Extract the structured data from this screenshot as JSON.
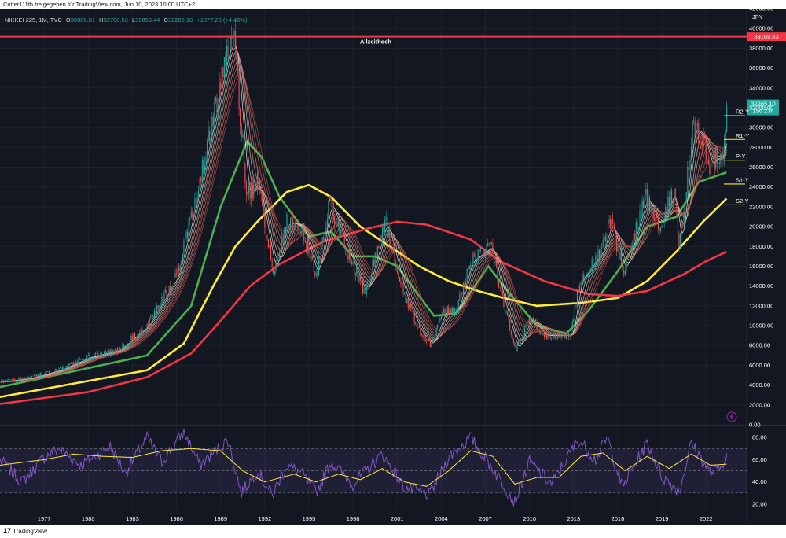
{
  "header": {
    "published_by": "Cutter111th freigegeben für TradingView.com, Jun 10, 2023 10:00 UTC+2"
  },
  "legend": {
    "symbol": "NIKKEI 225, 1M, TVC",
    "open_label": "O",
    "open": "30886.01",
    "high_label": "H",
    "high": "32708.53",
    "low_label": "L",
    "low": "30853.44",
    "close_label": "C",
    "close": "32265.10",
    "change": "+1377.29 (+4.46%)"
  },
  "footer": {
    "logo": "17",
    "brand": "TradingView"
  },
  "colors": {
    "background": "#131722",
    "rsi_background": "#1a1d2b",
    "up_candle": "#26a69a",
    "down_candle": "#ef5350",
    "ath_line": "#f23645",
    "green_ma": "#4caf50",
    "yellow_ma": "#ffeb3b",
    "red_ma": "#f23645",
    "rsi_line": "#7e57c2",
    "rsi_ma": "#ffeb3b",
    "pivot": "#ffeb3b",
    "price_tag": "#26a69a"
  },
  "chart_data": {
    "type": "candlestick",
    "symbol": "NIKKEI 225",
    "interval": "1M",
    "currency": "JPY",
    "y_range": [
      0,
      42000
    ],
    "y_ticks": [
      0,
      2000,
      4000,
      6000,
      8000,
      10000,
      12000,
      14000,
      16000,
      18000,
      20000,
      22000,
      24000,
      26000,
      28000,
      30000,
      32000,
      34000,
      36000,
      38000,
      40000,
      42000
    ],
    "y_tick_labels": [
      "0.00",
      "2000.00",
      "4000.00",
      "6000.00",
      "8000.00",
      "10000.00",
      "12000.00",
      "14000.00",
      "16000.00",
      "18000.00",
      "20000.00",
      "22000.00",
      "24000.00",
      "26000.00",
      "28000.00",
      "30000.00",
      "32000.00",
      "34000.00",
      "36000.00",
      "38000.00",
      "40000.00",
      "42000.00"
    ],
    "x_range": [
      1974.0,
      2024.5
    ],
    "x_ticks": [
      1977,
      1980,
      1983,
      1986,
      1989,
      1992,
      1995,
      1998,
      2001,
      2004,
      2007,
      2010,
      2013,
      2016,
      2019,
      2022
    ],
    "x_tick_labels": [
      "1977",
      "1980",
      "1983",
      "1986",
      "1989",
      "1992",
      "1995",
      "1998",
      "2001",
      "2004",
      "2007",
      "2010",
      "2013",
      "2016",
      "2019",
      "2022"
    ],
    "price_path": [
      [
        1974.0,
        4300
      ],
      [
        1976.0,
        4700
      ],
      [
        1978.0,
        5500
      ],
      [
        1980.0,
        6800
      ],
      [
        1982.0,
        7500
      ],
      [
        1984.0,
        10000
      ],
      [
        1986.0,
        15000
      ],
      [
        1987.5,
        24000
      ],
      [
        1989.5,
        38000
      ],
      [
        1989.95,
        38500
      ],
      [
        1990.4,
        30000
      ],
      [
        1990.8,
        23000
      ],
      [
        1991.5,
        24500
      ],
      [
        1992.6,
        15500
      ],
      [
        1993.5,
        20500
      ],
      [
        1994.5,
        20000
      ],
      [
        1995.5,
        15000
      ],
      [
        1996.4,
        22500
      ],
      [
        1997.5,
        18000
      ],
      [
        1998.8,
        13200
      ],
      [
        2000.2,
        20500
      ],
      [
        2001.5,
        13000
      ],
      [
        2002.5,
        9500
      ],
      [
        2003.3,
        8000
      ],
      [
        2004.2,
        11500
      ],
      [
        2005.0,
        11500
      ],
      [
        2006.0,
        16500
      ],
      [
        2007.4,
        18000
      ],
      [
        2008.0,
        13500
      ],
      [
        2009.1,
        7500
      ],
      [
        2010.0,
        10800
      ],
      [
        2011.0,
        9000
      ],
      [
        2012.8,
        9000
      ],
      [
        2013.4,
        14500
      ],
      [
        2014.9,
        17500
      ],
      [
        2015.5,
        20500
      ],
      [
        2016.4,
        15500
      ],
      [
        2017.9,
        23000
      ],
      [
        2018.8,
        20000
      ],
      [
        2019.8,
        23500
      ],
      [
        2020.2,
        18000
      ],
      [
        2021.1,
        30000
      ],
      [
        2021.8,
        29000
      ],
      [
        2022.3,
        26000
      ],
      [
        2022.8,
        27500
      ],
      [
        2023.1,
        26500
      ],
      [
        2023.45,
        32265
      ]
    ],
    "close_price": 32265.1,
    "close_label": "32265.10",
    "countdown_label": "19d 23h",
    "all_time_high": {
      "value": 39169.43,
      "label": "39169.43",
      "annotation": "Allzeithoch"
    },
    "pivots": [
      {
        "name": "R2-Y",
        "value": 31200
      },
      {
        "name": "R1-Y",
        "value": 28800
      },
      {
        "name": "P-Y",
        "value": 26700
      },
      {
        "name": "S1-Y",
        "value": 24300
      },
      {
        "name": "S2-Y",
        "value": 22200
      }
    ],
    "moving_averages": [
      {
        "color": "green",
        "points": [
          [
            1974.0,
            3800
          ],
          [
            1984.0,
            7000
          ],
          [
            1987.0,
            12000
          ],
          [
            1989.0,
            22000
          ],
          [
            1990.8,
            28600
          ],
          [
            1991.8,
            27000
          ],
          [
            1993.0,
            23000
          ],
          [
            1995.0,
            19000
          ],
          [
            1996.5,
            19500
          ],
          [
            1998.0,
            17000
          ],
          [
            1999.5,
            17000
          ],
          [
            2001.0,
            16000
          ],
          [
            2003.5,
            11000
          ],
          [
            2005.0,
            11200
          ],
          [
            2007.2,
            16000
          ],
          [
            2008.5,
            13500
          ],
          [
            2010.5,
            10000
          ],
          [
            2012.5,
            9200
          ],
          [
            2014.0,
            11500
          ],
          [
            2016.0,
            15500
          ],
          [
            2018.0,
            20000
          ],
          [
            2020.0,
            21000
          ],
          [
            2021.5,
            24500
          ],
          [
            2023.45,
            25500
          ]
        ]
      },
      {
        "color": "yellow",
        "points": [
          [
            1974.0,
            2800
          ],
          [
            1984.0,
            5500
          ],
          [
            1986.5,
            8200
          ],
          [
            1988.5,
            14000
          ],
          [
            1990.0,
            18000
          ],
          [
            1991.5,
            20500
          ],
          [
            1993.5,
            23500
          ],
          [
            1995.0,
            24200
          ],
          [
            1996.5,
            23000
          ],
          [
            1998.5,
            20000
          ],
          [
            2000.5,
            18000
          ],
          [
            2002.5,
            16000
          ],
          [
            2004.5,
            14500
          ],
          [
            2006.5,
            13500
          ],
          [
            2008.5,
            12700
          ],
          [
            2010.5,
            12000
          ],
          [
            2013.5,
            12300
          ],
          [
            2016.0,
            12800
          ],
          [
            2018.0,
            14500
          ],
          [
            2020.0,
            17500
          ],
          [
            2021.8,
            20500
          ],
          [
            2023.45,
            22900
          ]
        ]
      },
      {
        "color": "red",
        "points": [
          [
            1974.0,
            2100
          ],
          [
            1980.0,
            3300
          ],
          [
            1984.0,
            4800
          ],
          [
            1987.0,
            7200
          ],
          [
            1989.0,
            10500
          ],
          [
            1991.0,
            14000
          ],
          [
            1993.0,
            16200
          ],
          [
            1996.0,
            18500
          ],
          [
            1999.0,
            19800
          ],
          [
            2001.0,
            20500
          ],
          [
            2003.0,
            20200
          ],
          [
            2006.0,
            18700
          ],
          [
            2008.0,
            16500
          ],
          [
            2011.0,
            14500
          ],
          [
            2014.0,
            13200
          ],
          [
            2016.0,
            13000
          ],
          [
            2018.0,
            13500
          ],
          [
            2020.5,
            15200
          ],
          [
            2022.0,
            16500
          ],
          [
            2023.45,
            17500
          ]
        ]
      }
    ],
    "rsi": {
      "y_range": [
        15,
        90
      ],
      "y_ticks": [
        20,
        40,
        60,
        80
      ],
      "y_tick_labels": [
        "20.00",
        "40.00",
        "60.00",
        "80.00"
      ],
      "levels": [
        30,
        50,
        70
      ],
      "rsi_points": [
        [
          1974.0,
          60
        ],
        [
          1975.5,
          40
        ],
        [
          1977.0,
          62
        ],
        [
          1978.0,
          70
        ],
        [
          1979.5,
          55
        ],
        [
          1981.5,
          72
        ],
        [
          1982.5,
          48
        ],
        [
          1984.0,
          80
        ],
        [
          1985.0,
          58
        ],
        [
          1986.5,
          85
        ],
        [
          1987.6,
          55
        ],
        [
          1989.5,
          78
        ],
        [
          1990.4,
          30
        ],
        [
          1991.5,
          50
        ],
        [
          1992.5,
          28
        ],
        [
          1993.5,
          55
        ],
        [
          1994.5,
          48
        ],
        [
          1995.5,
          30
        ],
        [
          1996.5,
          58
        ],
        [
          1998.0,
          38
        ],
        [
          2000.0,
          65
        ],
        [
          2001.5,
          35
        ],
        [
          2003.2,
          28
        ],
        [
          2004.5,
          62
        ],
        [
          2006.0,
          80
        ],
        [
          2007.5,
          52
        ],
        [
          2009.0,
          22
        ],
        [
          2010.0,
          58
        ],
        [
          2011.5,
          38
        ],
        [
          2013.3,
          78
        ],
        [
          2014.5,
          60
        ],
        [
          2015.3,
          80
        ],
        [
          2016.3,
          35
        ],
        [
          2018.0,
          75
        ],
        [
          2019.0,
          45
        ],
        [
          2020.2,
          32
        ],
        [
          2021.0,
          75
        ],
        [
          2022.3,
          48
        ],
        [
          2023.0,
          52
        ],
        [
          2023.45,
          68
        ]
      ],
      "ma_points": [
        [
          1974.0,
          55
        ],
        [
          1977.0,
          60
        ],
        [
          1979.0,
          65
        ],
        [
          1981.0,
          63
        ],
        [
          1983.0,
          62
        ],
        [
          1985.0,
          68
        ],
        [
          1987.0,
          70
        ],
        [
          1989.0,
          68
        ],
        [
          1990.5,
          50
        ],
        [
          1992.0,
          40
        ],
        [
          1994.0,
          47
        ],
        [
          1995.5,
          40
        ],
        [
          1997.0,
          47
        ],
        [
          1998.5,
          42
        ],
        [
          2000.0,
          52
        ],
        [
          2001.5,
          40
        ],
        [
          2003.0,
          36
        ],
        [
          2004.5,
          50
        ],
        [
          2006.0,
          68
        ],
        [
          2007.5,
          63
        ],
        [
          2009.0,
          38
        ],
        [
          2010.5,
          44
        ],
        [
          2012.0,
          44
        ],
        [
          2013.5,
          63
        ],
        [
          2015.0,
          66
        ],
        [
          2016.5,
          50
        ],
        [
          2018.0,
          63
        ],
        [
          2019.5,
          52
        ],
        [
          2021.0,
          65
        ],
        [
          2022.3,
          55
        ],
        [
          2023.45,
          56
        ]
      ]
    }
  }
}
